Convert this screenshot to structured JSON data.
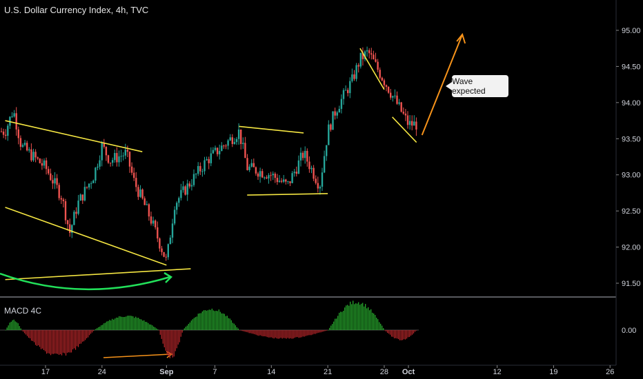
{
  "header": {
    "title": "U.S. Dollar Currency Index, 4h, TVC"
  },
  "macd": {
    "title": "MACD 4C",
    "tick_label": "0.00"
  },
  "annotation": {
    "text": "Wave expected"
  },
  "colors": {
    "background": "#000000",
    "up_candle": "#26a69a",
    "down_candle": "#ef5350",
    "trendline": "#f5e642",
    "arrow_orange": "#f7931a",
    "arc_green": "#22e05a",
    "macd_pos": "#2ab530",
    "macd_neg": "#c0282c",
    "axis_text": "#d1d4dc",
    "grid": "#1a1a1a"
  },
  "chart_data": {
    "type": "candlestick",
    "timeframe": "4h",
    "symbol": "U.S. Dollar Currency Index",
    "source": "TVC",
    "x_tick_labels": [
      "17",
      "24",
      "Sep",
      "7",
      "14",
      "21",
      "28",
      "Oct",
      "12",
      "19",
      "26"
    ],
    "y_tick_labels": [
      "95.00",
      "94.50",
      "94.00",
      "93.50",
      "93.00",
      "92.50",
      "92.00",
      "91.50"
    ],
    "ylim": [
      91.3,
      95.4
    ],
    "price_path": [
      {
        "date": "Aug 12",
        "price": 93.6
      },
      {
        "date": "Aug 13",
        "price": 93.9
      },
      {
        "date": "Aug 14",
        "price": 93.4
      },
      {
        "date": "Aug 17",
        "price": 93.1
      },
      {
        "date": "Aug 19",
        "price": 92.7
      },
      {
        "date": "Aug 20",
        "price": 92.2
      },
      {
        "date": "Aug 21",
        "price": 92.6
      },
      {
        "date": "Aug 23",
        "price": 93.0
      },
      {
        "date": "Aug 24",
        "price": 93.4
      },
      {
        "date": "Aug 25",
        "price": 93.2
      },
      {
        "date": "Aug 27",
        "price": 93.3
      },
      {
        "date": "Aug 28",
        "price": 92.9
      },
      {
        "date": "Aug 30",
        "price": 92.4
      },
      {
        "date": "Sep 1",
        "price": 91.8
      },
      {
        "date": "Sep 2",
        "price": 92.6
      },
      {
        "date": "Sep 4",
        "price": 92.9
      },
      {
        "date": "Sep 6",
        "price": 93.2
      },
      {
        "date": "Sep 9",
        "price": 93.5
      },
      {
        "date": "Sep 10",
        "price": 93.6
      },
      {
        "date": "Sep 11",
        "price": 93.1
      },
      {
        "date": "Sep 14",
        "price": 93.0
      },
      {
        "date": "Sep 16",
        "price": 92.85
      },
      {
        "date": "Sep 18",
        "price": 93.3
      },
      {
        "date": "Sep 20",
        "price": 92.85
      },
      {
        "date": "Sep 21",
        "price": 93.6
      },
      {
        "date": "Sep 22",
        "price": 93.9
      },
      {
        "date": "Sep 24",
        "price": 94.3
      },
      {
        "date": "Sep 25",
        "price": 94.6
      },
      {
        "date": "Sep 26",
        "price": 94.7
      },
      {
        "date": "Sep 28",
        "price": 94.3
      },
      {
        "date": "Sep 30",
        "price": 93.9
      },
      {
        "date": "Oct 1",
        "price": 93.7
      }
    ],
    "trendlines": [
      {
        "from": {
          "date": "Aug 12",
          "price": 93.75
        },
        "to": {
          "date": "Aug 29",
          "price": 93.32
        }
      },
      {
        "from": {
          "date": "Aug 12",
          "price": 92.55
        },
        "to": {
          "date": "Sep 1",
          "price": 91.75
        }
      },
      {
        "from": {
          "date": "Aug 12",
          "price": 91.55
        },
        "to": {
          "date": "Sep 4",
          "price": 91.7
        }
      },
      {
        "from": {
          "date": "Sep 10",
          "price": 93.67
        },
        "to": {
          "date": "Sep 18",
          "price": 93.58
        }
      },
      {
        "from": {
          "date": "Sep 11",
          "price": 92.72
        },
        "to": {
          "date": "Sep 21",
          "price": 92.74
        }
      },
      {
        "from": {
          "date": "Sep 25",
          "price": 94.75
        },
        "to": {
          "date": "Sep 28",
          "price": 94.18
        }
      },
      {
        "from": {
          "date": "Sep 29",
          "price": 93.8
        },
        "to": {
          "date": "Oct 2",
          "price": 93.45
        }
      }
    ],
    "projection_arrow": {
      "from": {
        "date": "Oct 2",
        "price": 93.55
      },
      "to": {
        "date": "Oct 7",
        "price": 95.0
      }
    },
    "macd_histogram": {
      "zero_label": "0.00",
      "segments": [
        {
          "start": "Aug 12",
          "end": "Aug 14",
          "sign": "positive",
          "peak": 0.35
        },
        {
          "start": "Aug 14",
          "end": "Aug 23",
          "sign": "negative",
          "peak": -0.9
        },
        {
          "start": "Aug 23",
          "end": "Aug 31",
          "sign": "positive",
          "peak": 0.5
        },
        {
          "start": "Aug 31",
          "end": "Sep 3",
          "sign": "negative",
          "peak": -0.95
        },
        {
          "start": "Sep 3",
          "end": "Sep 10",
          "sign": "positive",
          "peak": 0.75
        },
        {
          "start": "Sep 10",
          "end": "Sep 21",
          "sign": "negative",
          "peak": -0.3
        },
        {
          "start": "Sep 21",
          "end": "Sep 28",
          "sign": "positive",
          "peak": 1.0
        },
        {
          "start": "Sep 28",
          "end": "Oct 2",
          "sign": "negative",
          "peak": -0.35
        }
      ]
    }
  }
}
